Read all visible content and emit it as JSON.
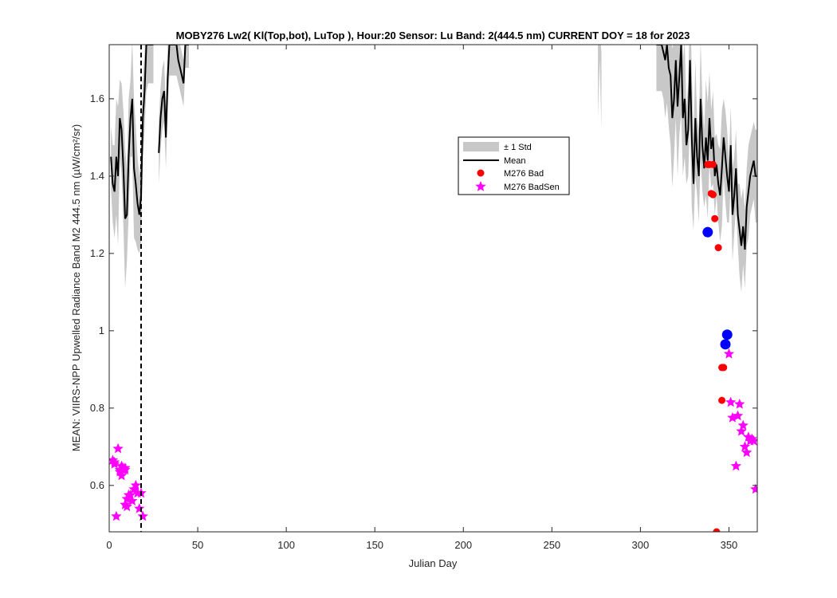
{
  "chart_data": {
    "type": "line",
    "title": "MOBY276   Lw2( Kl(Top,bot), LuTop ),   Hour:20 Sensor: Lu Band: 2(444.5 nm)   CURRENT DOY = 18 for 2023",
    "xlabel": "Julian Day",
    "ylabel": "MEAN: VIIRS-NPP Upwelled Radiance Band M2 444.5 nm (µW/cm²/sr)",
    "xlim": [
      0,
      366
    ],
    "ylim": [
      0.48,
      1.74
    ],
    "x_ticks": [
      0,
      50,
      100,
      150,
      200,
      250,
      300,
      350
    ],
    "x_tick_labels": [
      "0",
      "50",
      "100",
      "150",
      "200",
      "250",
      "300",
      "350"
    ],
    "y_ticks": [
      0.6,
      0.8,
      1.0,
      1.2,
      1.4,
      1.6
    ],
    "y_tick_labels": [
      "0.6",
      "0.8",
      "1",
      "1.2",
      "1.4",
      "1.6"
    ],
    "current_doy": 18,
    "legend": {
      "placement": "upper-right-center",
      "entries": [
        "± 1 Std",
        "Mean",
        "M276 Bad",
        "M276 BadSen"
      ]
    },
    "colors": {
      "std_band": "#c8c8c8",
      "mean": "#000000",
      "bad": "#ff0000",
      "badsen": "#ff00ff",
      "highlight": "#0000ff",
      "current_day_line": "#000000"
    },
    "mean_segments": [
      {
        "x": [
          1,
          2,
          3,
          4,
          5,
          6,
          7,
          8,
          9,
          10,
          11,
          12,
          13,
          14,
          15,
          16,
          17,
          18,
          19,
          20,
          21,
          22,
          23,
          24,
          25
        ],
        "y": [
          1.45,
          1.38,
          1.36,
          1.45,
          1.4,
          1.55,
          1.52,
          1.42,
          1.29,
          1.3,
          1.45,
          1.55,
          1.6,
          1.42,
          1.38,
          1.33,
          1.3,
          1.35,
          1.55,
          1.62,
          1.74,
          1.74,
          1.74,
          1.74,
          1.74
        ],
        "std": [
          0.08,
          0.1,
          0.12,
          0.15,
          0.18,
          0.1,
          0.12,
          0.15,
          0.18,
          0.12,
          0.15,
          0.1,
          0.15,
          0.18,
          0.15,
          0.12,
          0.1,
          0.12,
          0.1,
          0.1,
          0.12,
          0.1,
          0.1,
          0.1,
          0.1
        ]
      },
      {
        "x": [
          28,
          29,
          30,
          31,
          32,
          33,
          34,
          35,
          36,
          37,
          38,
          39,
          40,
          41,
          42,
          43,
          44,
          45
        ],
        "y": [
          1.46,
          1.55,
          1.6,
          1.62,
          1.5,
          1.65,
          1.74,
          1.74,
          1.74,
          1.74,
          1.74,
          1.7,
          1.68,
          1.66,
          1.64,
          1.74,
          1.74,
          1.74
        ],
        "std": [
          0.08,
          0.08,
          0.08,
          0.08,
          0.08,
          0.08,
          0.08,
          0.08,
          0.08,
          0.08,
          0.08,
          0.06,
          0.06,
          0.06,
          0.06,
          0.06,
          0.06,
          0.06
        ]
      },
      {
        "x": [
          309,
          310,
          311,
          312,
          313,
          314,
          315,
          316,
          317,
          318,
          319,
          320,
          321,
          322,
          323,
          324,
          325,
          326,
          327,
          328,
          329,
          330,
          331,
          332,
          333,
          334,
          335,
          336,
          337,
          338,
          339,
          340,
          341,
          342,
          343,
          344,
          345,
          346,
          347,
          348,
          349,
          350,
          351,
          352,
          353,
          354,
          355,
          356,
          357,
          358,
          359,
          360,
          361,
          362,
          363,
          364,
          365,
          366
        ],
        "y": [
          1.74,
          1.74,
          1.74,
          1.74,
          1.72,
          1.7,
          1.74,
          1.68,
          1.66,
          1.55,
          1.6,
          1.7,
          1.58,
          1.66,
          1.74,
          1.55,
          1.6,
          1.48,
          1.52,
          1.7,
          1.5,
          1.38,
          1.55,
          1.45,
          1.4,
          1.6,
          1.48,
          1.42,
          1.5,
          1.44,
          1.55,
          1.47,
          1.5,
          1.4,
          1.43,
          1.38,
          1.35,
          1.42,
          1.5,
          1.45,
          1.4,
          1.36,
          1.48,
          1.3,
          1.35,
          1.42,
          1.3,
          1.26,
          1.22,
          1.27,
          1.21,
          1.32,
          1.36,
          1.4,
          1.42,
          1.44,
          1.4,
          1.4
        ],
        "std": [
          0.12,
          0.12,
          0.12,
          0.12,
          0.12,
          0.15,
          0.15,
          0.15,
          0.18,
          0.18,
          0.15,
          0.15,
          0.18,
          0.15,
          0.18,
          0.15,
          0.15,
          0.1,
          0.12,
          0.15,
          0.18,
          0.12,
          0.15,
          0.1,
          0.12,
          0.15,
          0.12,
          0.1,
          0.15,
          0.15,
          0.12,
          0.1,
          0.12,
          0.1,
          0.08,
          0.1,
          0.12,
          0.15,
          0.1,
          0.12,
          0.12,
          0.08,
          0.1,
          0.12,
          0.1,
          0.1,
          0.08,
          0.12,
          0.12,
          0.1,
          0.1,
          0.1,
          0.12,
          0.1,
          0.1,
          0.1,
          0.12,
          0.12
        ]
      }
    ],
    "std_extra_segments": [
      {
        "x": [
          276,
          277,
          278
        ],
        "y": [
          1.65,
          1.74,
          1.62
        ],
        "std": [
          0.1,
          0.04,
          0.1
        ]
      }
    ],
    "bad_points": {
      "x": [
        338,
        339,
        340,
        341,
        341,
        342,
        343,
        344,
        346,
        346,
        347
      ],
      "y": [
        1.43,
        1.43,
        1.355,
        1.43,
        1.352,
        1.29,
        0.48,
        1.215,
        0.82,
        0.905,
        0.905
      ]
    },
    "badsen_points": {
      "x": [
        2,
        3,
        5,
        6,
        7,
        8,
        9,
        10,
        10,
        11,
        12,
        13,
        14,
        15,
        16,
        17,
        18,
        19,
        350,
        351,
        352,
        354,
        355,
        356,
        357,
        358,
        359,
        360,
        361,
        362,
        363,
        364,
        365
      ],
      "y": [
        0.665,
        0.66,
        0.695,
        0.635,
        0.625,
        0.645,
        0.64,
        0.545,
        0.565,
        0.575,
        0.575,
        0.56,
        0.59,
        0.6,
        0.58,
        0.54,
        0.58,
        0.52,
        0.94,
        0.815,
        0.775,
        0.65,
        0.78,
        0.81,
        0.74,
        0.755,
        0.7,
        0.685,
        0.725,
        0.715,
        0.72,
        0.715,
        0.59
      ]
    },
    "highlight_points": {
      "x": [
        338,
        348,
        349
      ],
      "y": [
        1.255,
        0.965,
        0.99
      ]
    },
    "badsen_extra": {
      "x": [
        3,
        4,
        6,
        7,
        8,
        9,
        9
      ],
      "y": [
        0.655,
        0.52,
        0.64,
        0.65,
        0.64,
        0.645,
        0.55
      ]
    }
  }
}
